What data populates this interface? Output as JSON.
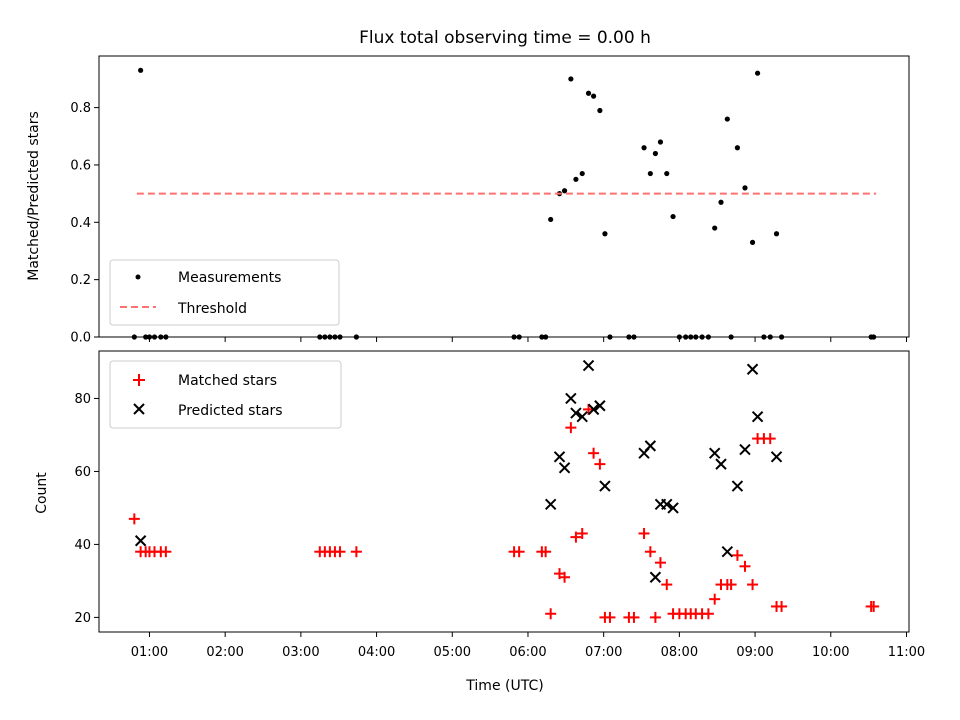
{
  "chart_data": [
    {
      "type": "scatter",
      "title": "Flux total observing time = 0.00 h",
      "xlabel": "",
      "ylabel": "Matched/Predicted stars",
      "xlim": [
        "00:20",
        "11:02"
      ],
      "ylim": [
        0,
        0.98
      ],
      "yticks": [
        "0.0",
        "0.2",
        "0.4",
        "0.6",
        "0.8"
      ],
      "grid": false,
      "legend_position": "lower-left",
      "series": [
        {
          "name": "Measurements",
          "marker": "dot",
          "color": "#000000",
          "points": [
            [
              "00:48",
              0
            ],
            [
              "00:53",
              0.93
            ],
            [
              "00:57",
              0
            ],
            [
              "01:00",
              0
            ],
            [
              "01:04",
              0
            ],
            [
              "01:09",
              0
            ],
            [
              "01:13",
              0
            ],
            [
              "03:15",
              0
            ],
            [
              "03:19",
              0
            ],
            [
              "03:23",
              0
            ],
            [
              "03:27",
              0
            ],
            [
              "03:31",
              0
            ],
            [
              "03:44",
              0
            ],
            [
              "05:49",
              0
            ],
            [
              "05:53",
              0
            ],
            [
              "06:11",
              0
            ],
            [
              "06:14",
              0
            ],
            [
              "06:18",
              0.41
            ],
            [
              "06:25",
              0.5
            ],
            [
              "06:29",
              0.51
            ],
            [
              "06:34",
              0.9
            ],
            [
              "06:38",
              0.55
            ],
            [
              "06:43",
              0.57
            ],
            [
              "06:48",
              0.85
            ],
            [
              "06:52",
              0.84
            ],
            [
              "06:57",
              0.79
            ],
            [
              "07:01",
              0.36
            ],
            [
              "07:05",
              0
            ],
            [
              "07:20",
              0
            ],
            [
              "07:24",
              0
            ],
            [
              "07:32",
              0.66
            ],
            [
              "07:37",
              0.57
            ],
            [
              "07:41",
              0.64
            ],
            [
              "07:45",
              0.68
            ],
            [
              "07:50",
              0.57
            ],
            [
              "07:55",
              0.42
            ],
            [
              "08:00",
              0
            ],
            [
              "08:05",
              0
            ],
            [
              "08:09",
              0
            ],
            [
              "08:13",
              0
            ],
            [
              "08:18",
              0
            ],
            [
              "08:23",
              0
            ],
            [
              "08:28",
              0.38
            ],
            [
              "08:33",
              0.47
            ],
            [
              "08:38",
              0.76
            ],
            [
              "08:41",
              0
            ],
            [
              "08:46",
              0.66
            ],
            [
              "08:52",
              0.52
            ],
            [
              "08:58",
              0.33
            ],
            [
              "09:02",
              0.92
            ],
            [
              "09:07",
              0
            ],
            [
              "09:12",
              0
            ],
            [
              "09:17",
              0.36
            ],
            [
              "09:21",
              0
            ],
            [
              "10:32",
              0
            ],
            [
              "10:34",
              0
            ]
          ]
        },
        {
          "name": "Threshold",
          "marker": "dashed-line",
          "color": "#ff7070",
          "points": [
            [
              "00:50",
              0.5
            ],
            [
              "10:36",
              0.5
            ]
          ]
        }
      ]
    },
    {
      "type": "scatter",
      "xlabel": "Time (UTC)",
      "ylabel": "Count",
      "xlim": [
        "00:20",
        "11:02"
      ],
      "ylim": [
        16,
        93
      ],
      "yticks": [
        "20",
        "40",
        "60",
        "80"
      ],
      "xticks": [
        "01:00",
        "02:00",
        "03:00",
        "04:00",
        "05:00",
        "06:00",
        "07:00",
        "08:00",
        "09:00",
        "10:00",
        "11:00"
      ],
      "grid": false,
      "legend_position": "upper-left",
      "series": [
        {
          "name": "Matched stars",
          "marker": "plus",
          "color": "#ff0000",
          "points": [
            [
              "00:48",
              47
            ],
            [
              "00:53",
              38
            ],
            [
              "00:57",
              38
            ],
            [
              "01:00",
              38
            ],
            [
              "01:04",
              38
            ],
            [
              "01:09",
              38
            ],
            [
              "01:13",
              38
            ],
            [
              "03:15",
              38
            ],
            [
              "03:19",
              38
            ],
            [
              "03:23",
              38
            ],
            [
              "03:27",
              38
            ],
            [
              "03:31",
              38
            ],
            [
              "03:44",
              38
            ],
            [
              "05:49",
              38
            ],
            [
              "05:53",
              38
            ],
            [
              "06:11",
              38
            ],
            [
              "06:14",
              38
            ],
            [
              "06:18",
              21
            ],
            [
              "06:25",
              32
            ],
            [
              "06:29",
              31
            ],
            [
              "06:34",
              72
            ],
            [
              "06:38",
              42
            ],
            [
              "06:43",
              43
            ],
            [
              "06:48",
              77
            ],
            [
              "06:52",
              65
            ],
            [
              "06:57",
              62
            ],
            [
              "07:01",
              20
            ],
            [
              "07:05",
              20
            ],
            [
              "07:20",
              20
            ],
            [
              "07:24",
              20
            ],
            [
              "07:32",
              43
            ],
            [
              "07:37",
              38
            ],
            [
              "07:41",
              20
            ],
            [
              "07:45",
              35
            ],
            [
              "07:50",
              29
            ],
            [
              "07:55",
              21
            ],
            [
              "08:00",
              21
            ],
            [
              "08:05",
              21
            ],
            [
              "08:09",
              21
            ],
            [
              "08:13",
              21
            ],
            [
              "08:18",
              21
            ],
            [
              "08:23",
              21
            ],
            [
              "08:28",
              25
            ],
            [
              "08:33",
              29
            ],
            [
              "08:38",
              29
            ],
            [
              "08:41",
              29
            ],
            [
              "08:46",
              37
            ],
            [
              "08:52",
              34
            ],
            [
              "08:58",
              29
            ],
            [
              "09:02",
              69
            ],
            [
              "09:07",
              69
            ],
            [
              "09:12",
              69
            ],
            [
              "09:17",
              23
            ],
            [
              "09:21",
              23
            ],
            [
              "10:32",
              23
            ],
            [
              "10:34",
              23
            ]
          ]
        },
        {
          "name": "Predicted stars",
          "marker": "cross",
          "color": "#000000",
          "points": [
            [
              "00:53",
              41
            ],
            [
              "06:18",
              51
            ],
            [
              "06:25",
              64
            ],
            [
              "06:29",
              61
            ],
            [
              "06:34",
              80
            ],
            [
              "06:38",
              76
            ],
            [
              "06:43",
              75
            ],
            [
              "06:48",
              89
            ],
            [
              "06:52",
              77
            ],
            [
              "06:57",
              78
            ],
            [
              "07:01",
              56
            ],
            [
              "07:32",
              65
            ],
            [
              "07:37",
              67
            ],
            [
              "07:41",
              31
            ],
            [
              "07:45",
              51
            ],
            [
              "07:50",
              51
            ],
            [
              "07:55",
              50
            ],
            [
              "08:28",
              65
            ],
            [
              "08:33",
              62
            ],
            [
              "08:38",
              38
            ],
            [
              "08:46",
              56
            ],
            [
              "08:52",
              66
            ],
            [
              "08:58",
              88
            ],
            [
              "09:02",
              75
            ],
            [
              "09:17",
              64
            ]
          ]
        }
      ]
    }
  ]
}
